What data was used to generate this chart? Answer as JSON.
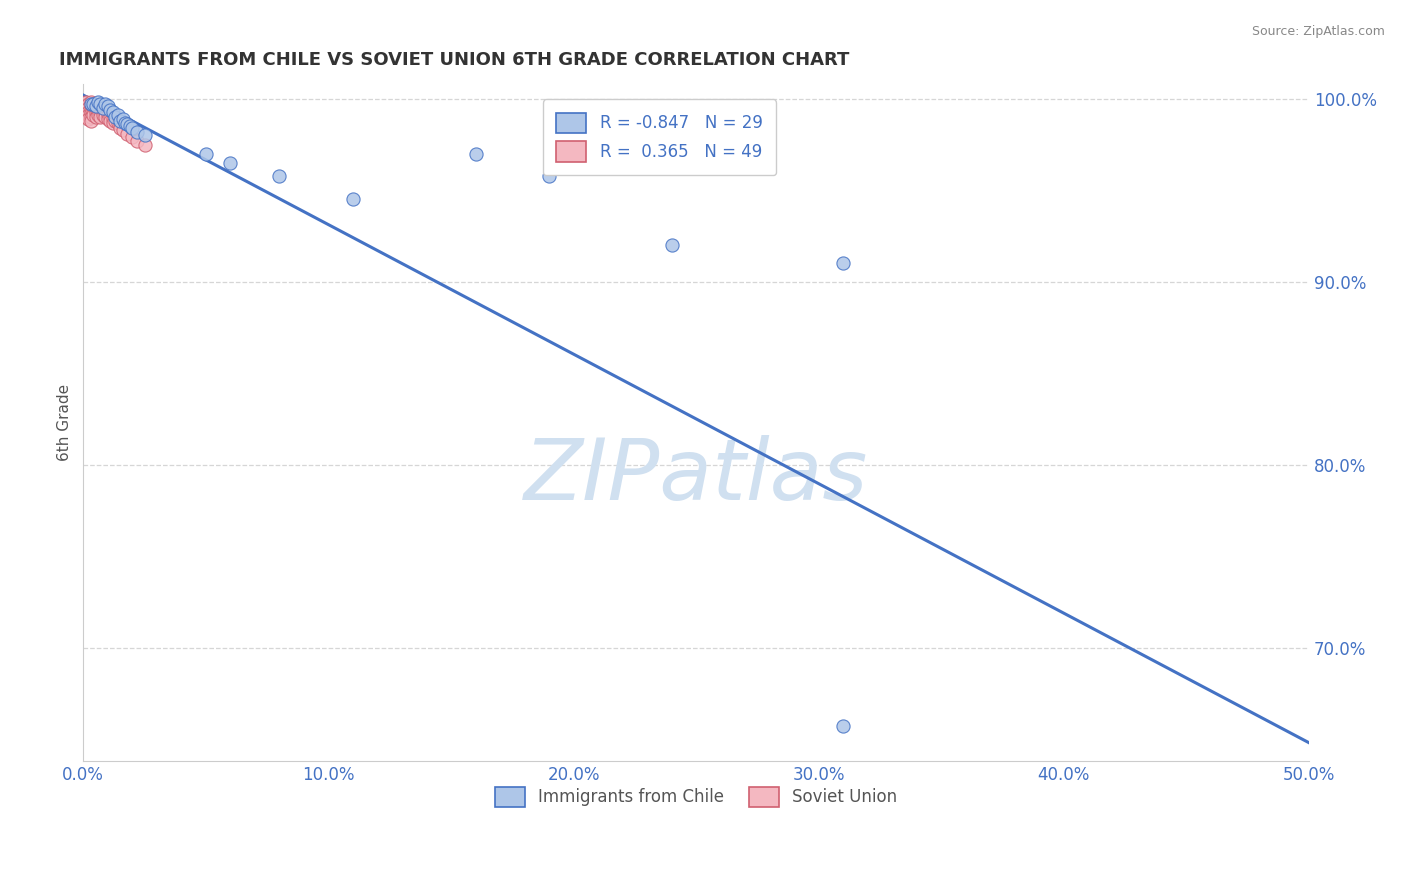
{
  "title": "IMMIGRANTS FROM CHILE VS SOVIET UNION 6TH GRADE CORRELATION CHART",
  "source": "Source: ZipAtlas.com",
  "ylabel": "6th Grade",
  "xlim": [
    0.0,
    0.5
  ],
  "ylim": [
    0.638,
    1.008
  ],
  "xticks": [
    0.0,
    0.1,
    0.2,
    0.3,
    0.4,
    0.5
  ],
  "xtick_labels": [
    "0.0%",
    "10.0%",
    "20.0%",
    "30.0%",
    "40.0%",
    "50.0%"
  ],
  "yticks": [
    0.7,
    0.8,
    0.9,
    1.0
  ],
  "ytick_labels": [
    "70.0%",
    "80.0%",
    "90.0%",
    "100.0%"
  ],
  "legend_entries": [
    {
      "label": "R = -0.847   N = 29",
      "color": "#aec6e8"
    },
    {
      "label": "R =  0.365   N = 49",
      "color": "#f4b8c1"
    }
  ],
  "legend_bottom": [
    "Immigrants from Chile",
    "Soviet Union"
  ],
  "regression_line": {
    "x": [
      0.0,
      0.5
    ],
    "y": [
      1.002,
      0.648
    ],
    "color": "#4472c4",
    "linewidth": 2.2
  },
  "blue_dots_x": [
    0.003,
    0.004,
    0.005,
    0.006,
    0.007,
    0.008,
    0.009,
    0.01,
    0.011,
    0.012,
    0.013,
    0.014,
    0.015,
    0.016,
    0.017,
    0.018,
    0.019,
    0.02,
    0.022,
    0.025,
    0.05,
    0.06,
    0.08,
    0.11,
    0.16,
    0.19,
    0.24,
    0.31,
    0.31
  ],
  "blue_dots_y": [
    0.997,
    0.997,
    0.996,
    0.998,
    0.997,
    0.995,
    0.997,
    0.996,
    0.994,
    0.993,
    0.99,
    0.991,
    0.988,
    0.989,
    0.987,
    0.986,
    0.985,
    0.984,
    0.982,
    0.98,
    0.97,
    0.965,
    0.958,
    0.945,
    0.97,
    0.958,
    0.92,
    0.91,
    0.657
  ],
  "pink_dots_x": [
    0.001,
    0.001,
    0.001,
    0.001,
    0.001,
    0.002,
    0.002,
    0.002,
    0.002,
    0.002,
    0.003,
    0.003,
    0.003,
    0.003,
    0.003,
    0.003,
    0.004,
    0.004,
    0.004,
    0.004,
    0.005,
    0.005,
    0.005,
    0.005,
    0.006,
    0.006,
    0.006,
    0.007,
    0.007,
    0.007,
    0.008,
    0.008,
    0.009,
    0.009,
    0.01,
    0.01,
    0.011,
    0.011,
    0.012,
    0.012,
    0.013,
    0.014,
    0.015,
    0.015,
    0.016,
    0.018,
    0.02,
    0.022,
    0.025
  ],
  "pink_dots_y": [
    0.998,
    0.996,
    0.994,
    0.992,
    0.99,
    0.997,
    0.995,
    0.993,
    0.991,
    0.989,
    0.998,
    0.996,
    0.994,
    0.992,
    0.99,
    0.988,
    0.997,
    0.995,
    0.993,
    0.991,
    0.996,
    0.994,
    0.992,
    0.99,
    0.995,
    0.993,
    0.991,
    0.994,
    0.992,
    0.99,
    0.993,
    0.991,
    0.992,
    0.99,
    0.991,
    0.989,
    0.99,
    0.988,
    0.989,
    0.987,
    0.988,
    0.987,
    0.986,
    0.984,
    0.983,
    0.981,
    0.979,
    0.977,
    0.975
  ],
  "dot_size": 90,
  "blue_dot_color": "#aec6e8",
  "blue_dot_edge": "#4472c4",
  "pink_dot_color": "#f4b8c1",
  "pink_dot_edge": "#d06070",
  "watermark_text": "ZIPatlas",
  "watermark_color": "#d0e0f0",
  "grid_color": "#cccccc",
  "title_color": "#333333",
  "axis_label_color": "#555555",
  "tick_color": "#4472c4",
  "background_color": "#ffffff"
}
